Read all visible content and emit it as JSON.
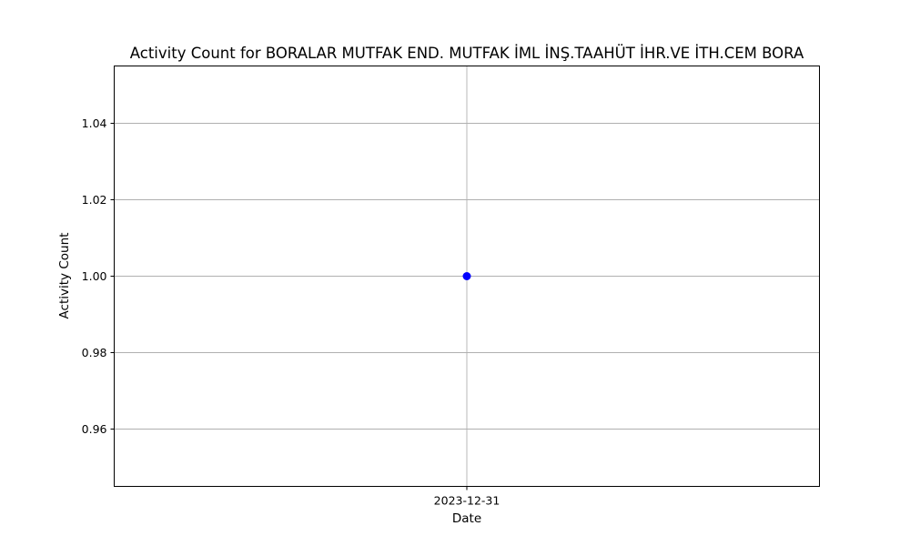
{
  "chart_data": {
    "type": "line",
    "title": "Activity Count for BORALAR MUTFAK END. MUTFAK İML İNŞ.TAAHÜT İHR.VE İTH.CEM BORA",
    "xlabel": "Date",
    "ylabel": "Activity Count",
    "x": [
      "2023-12-31"
    ],
    "series": [
      {
        "values": [
          1.0
        ],
        "color": "#0000ff",
        "marker": "circle"
      }
    ],
    "ylim": [
      0.945,
      1.055
    ],
    "yticks": [
      0.96,
      0.98,
      1.0,
      1.02,
      1.04
    ],
    "ytick_labels": [
      "0.96",
      "0.98",
      "1.00",
      "1.02",
      "1.04"
    ],
    "xtick_labels": [
      "2023-12-31"
    ],
    "grid": true,
    "legend": "none"
  }
}
